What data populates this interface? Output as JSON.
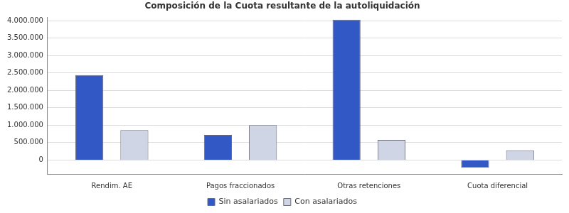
{
  "chart_data": {
    "type": "bar",
    "title": "Composición de la Cuota resultante de la autoliquidación",
    "categories": [
      "Rendim. AE",
      "Pagos fraccionados",
      "Otras retenciones",
      "Cuota diferencial"
    ],
    "series": [
      {
        "name": "Sin asalariados",
        "color": "#3158c4",
        "values": [
          2440000,
          720000,
          4030000,
          -220000
        ]
      },
      {
        "name": "Con asalariados",
        "color": "#d0d5e6",
        "values": [
          860000,
          1000000,
          580000,
          280000
        ]
      }
    ],
    "ylim": [
      -400000,
      4100000
    ],
    "yticks": [
      0,
      {
        "value": 500000,
        "label": "500.000"
      },
      {
        "value": 1000000,
        "label": "1.000.000"
      },
      {
        "value": 1500000,
        "label": "1.500.000"
      },
      {
        "value": 2000000,
        "label": "2.000.000"
      },
      {
        "value": 2500000,
        "label": "2.500.000"
      },
      {
        "value": 3000000,
        "label": "3.000.000"
      },
      {
        "value": 3500000,
        "label": "3.500.000"
      },
      {
        "value": 4000000,
        "label": "4.000.000"
      }
    ],
    "grid": true,
    "legend": "bottom"
  }
}
